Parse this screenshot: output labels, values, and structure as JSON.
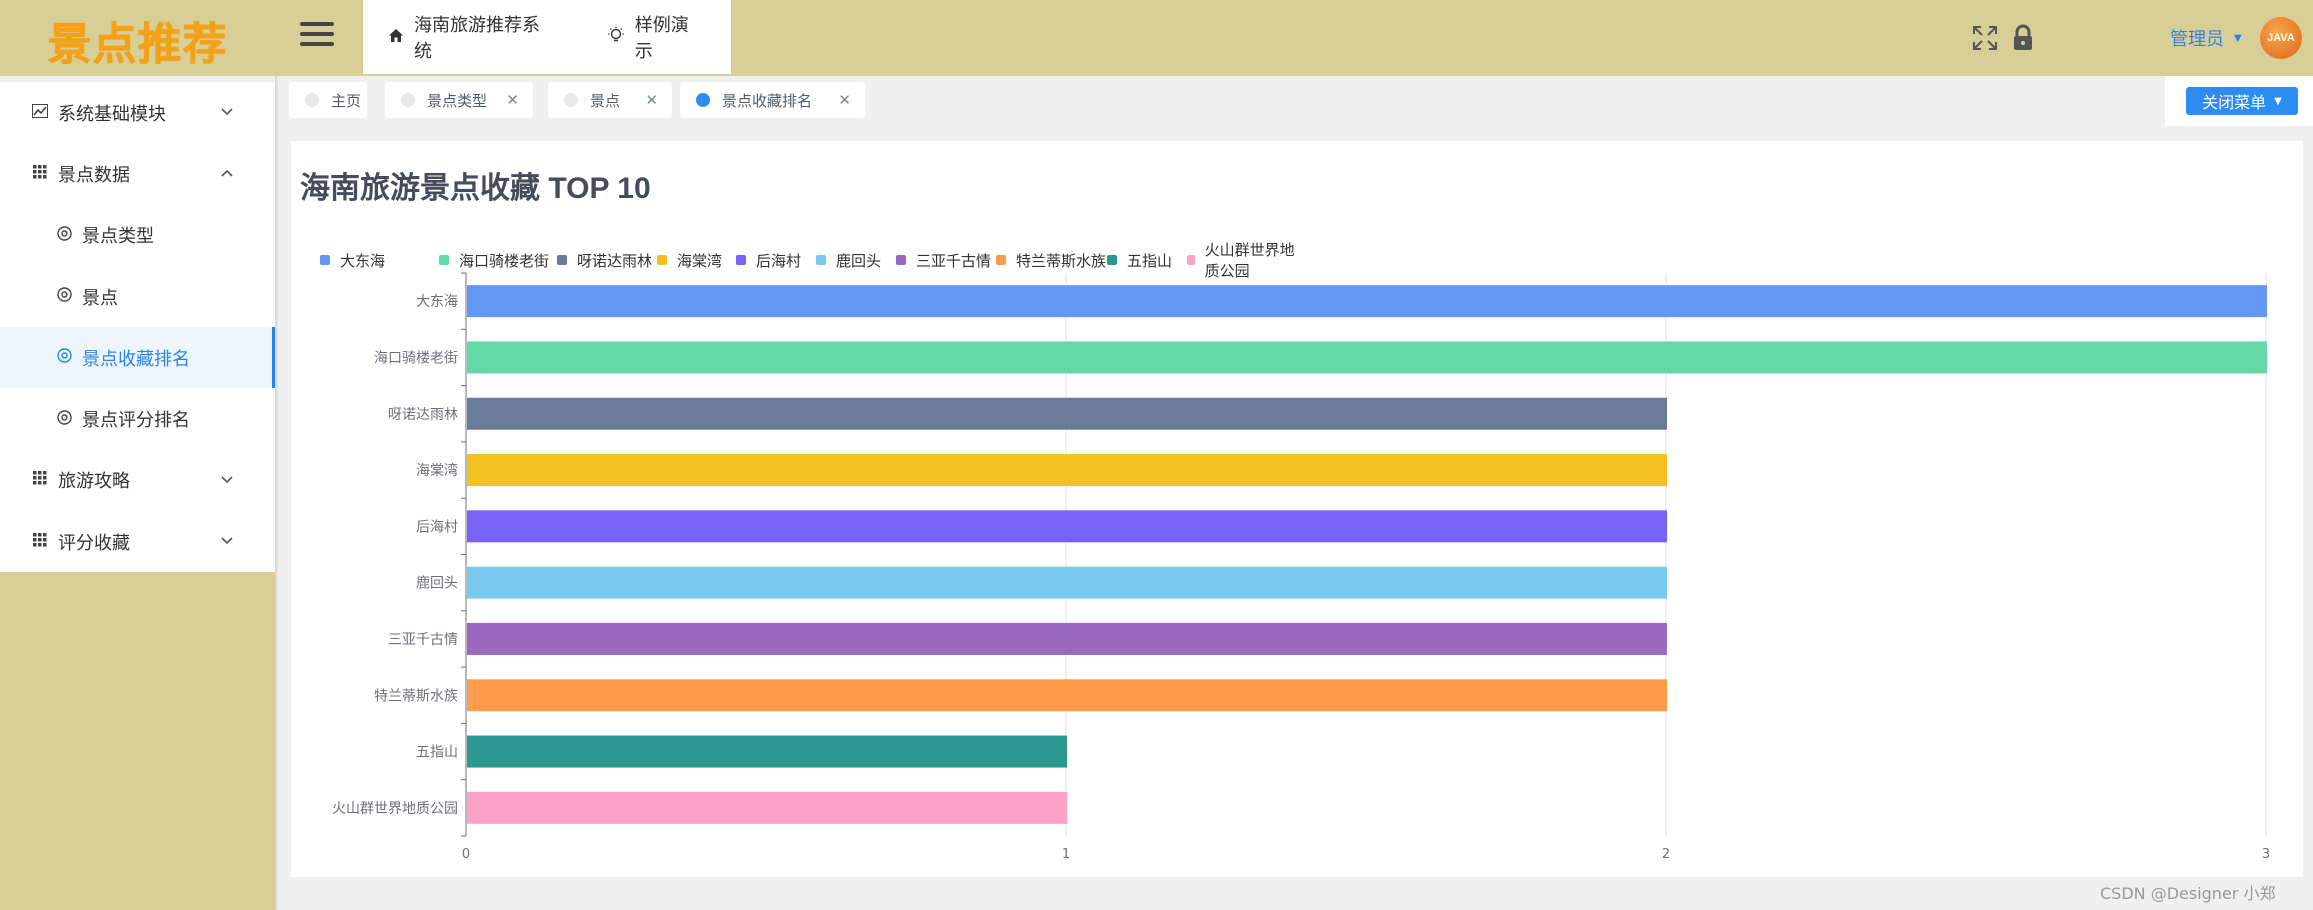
{
  "app": {
    "logo": "景点推荐"
  },
  "header": {
    "tabs": [
      {
        "label": "海南旅游推荐系统",
        "icon": "home-icon"
      },
      {
        "label": "样例演示",
        "icon": "bulb-icon"
      }
    ],
    "user": "管理员",
    "avatar_text": "JAVA"
  },
  "sidebar": {
    "items": [
      {
        "label": "系统基础模块",
        "icon": "chart-icon",
        "chevron": "down",
        "level": 1
      },
      {
        "label": "景点数据",
        "icon": "grid-icon",
        "chevron": "up",
        "level": 1
      },
      {
        "label": "景点类型",
        "icon": "circle-gear-icon",
        "level": 2
      },
      {
        "label": "景点",
        "icon": "circle-gear-icon",
        "level": 2
      },
      {
        "label": "景点收藏排名",
        "icon": "circle-gear-icon",
        "level": 2,
        "active": true
      },
      {
        "label": "景点评分排名",
        "icon": "circle-gear-icon",
        "level": 2
      },
      {
        "label": "旅游攻略",
        "icon": "grid-icon",
        "chevron": "down",
        "level": 1
      },
      {
        "label": "评分收藏",
        "icon": "grid-icon",
        "chevron": "down",
        "level": 1
      }
    ]
  },
  "tags": [
    {
      "label": "主页",
      "closable": false,
      "active": false
    },
    {
      "label": "景点类型",
      "closable": true,
      "active": false
    },
    {
      "label": "景点",
      "closable": true,
      "active": false
    },
    {
      "label": "景点收藏排名",
      "closable": true,
      "active": true
    }
  ],
  "close_menu_label": "关闭菜单",
  "watermark": "CSDN @Designer 小郑",
  "colors": {
    "accent": "#2d8cf0",
    "header_bg": "#d8cf97",
    "logo": "#f5a114"
  },
  "chart_data": {
    "type": "bar",
    "orientation": "horizontal",
    "title": "海南旅游景点收藏 TOP 10",
    "categories": [
      "大东海",
      "海口骑楼老街",
      "呀诺达雨林",
      "海棠湾",
      "后海村",
      "鹿回头",
      "三亚千古情",
      "特兰蒂斯水族",
      "五指山",
      "火山群世界地质公园"
    ],
    "values": [
      3,
      3,
      2,
      2,
      2,
      2,
      2,
      2,
      1,
      1
    ],
    "colors": [
      "#6597f5",
      "#63d9a8",
      "#6a7a99",
      "#f4c122",
      "#7862f5",
      "#79cbed",
      "#9a68be",
      "#ff9b4a",
      "#2b9892",
      "#fda2c7"
    ],
    "x_ticks": [
      "0",
      "1",
      "2",
      "3"
    ],
    "xlim": [
      0,
      3
    ],
    "grid": true,
    "legend": "top"
  }
}
